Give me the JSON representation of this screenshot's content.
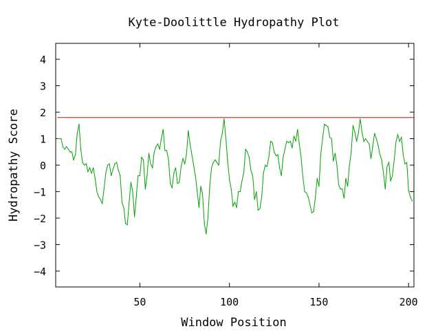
{
  "chart_data": {
    "type": "line",
    "title": "Kyte-Doolittle Hydropathy Plot",
    "xlabel": "Window Position",
    "ylabel": "Hydropathy Score",
    "xlim": [
      3,
      203
    ],
    "ylim": [
      -4.6,
      4.6
    ],
    "x_ticks": [
      50,
      100,
      150,
      200
    ],
    "y_ticks": [
      -4,
      -3,
      -2,
      -1,
      0,
      1,
      2,
      3,
      4
    ],
    "grid": false,
    "legend": "none",
    "threshold": {
      "value": 1.8,
      "color": "#e00000"
    },
    "series": [
      {
        "color": "#00a000",
        "x": [
          4,
          5,
          6,
          7,
          8,
          9,
          10,
          11,
          12,
          13,
          14,
          15,
          16,
          17,
          18,
          19,
          20,
          21,
          22,
          23,
          24,
          25,
          26,
          27,
          28,
          29,
          30,
          31,
          32,
          33,
          34,
          35,
          36,
          37,
          38,
          39,
          40,
          41,
          42,
          43,
          44,
          45,
          46,
          47,
          48,
          49,
          50,
          51,
          52,
          53,
          54,
          55,
          56,
          57,
          58,
          59,
          60,
          61,
          62,
          63,
          64,
          65,
          66,
          67,
          68,
          69,
          70,
          71,
          72,
          73,
          74,
          75,
          76,
          77,
          78,
          79,
          80,
          81,
          82,
          83,
          84,
          85,
          86,
          87,
          88,
          89,
          90,
          91,
          92,
          93,
          94,
          95,
          96,
          97,
          98,
          99,
          100,
          101,
          102,
          103,
          104,
          105,
          106,
          107,
          108,
          109,
          110,
          111,
          112,
          113,
          114,
          115,
          116,
          117,
          118,
          119,
          120,
          121,
          122,
          123,
          124,
          125,
          126,
          127,
          128,
          129,
          130,
          131,
          132,
          133,
          134,
          135,
          136,
          137,
          138,
          139,
          140,
          141,
          142,
          143,
          144,
          145,
          146,
          147,
          148,
          149,
          150,
          151,
          152,
          153,
          154,
          155,
          156,
          157,
          158,
          159,
          160,
          161,
          162,
          163,
          164,
          165,
          166,
          167,
          168,
          169,
          170,
          171,
          172,
          173,
          174,
          175,
          176,
          177,
          178,
          179,
          180,
          181,
          182,
          183,
          184,
          185,
          186,
          187,
          188,
          189,
          190,
          191,
          192,
          193,
          194,
          195,
          196,
          197,
          198,
          199,
          200,
          201,
          202
        ],
        "y": [
          1.0,
          1.0,
          1.0,
          0.7,
          0.6,
          0.7,
          0.6,
          0.5,
          0.5,
          0.2,
          0.4,
          1.2,
          1.55,
          0.6,
          0.1,
          0.0,
          0.05,
          -0.25,
          -0.1,
          -0.3,
          -0.1,
          -0.5,
          -1.0,
          -1.2,
          -1.3,
          -1.45,
          -0.9,
          -0.3,
          0.0,
          0.05,
          -0.4,
          -0.15,
          0.05,
          0.1,
          -0.2,
          -0.4,
          -1.4,
          -1.6,
          -2.2,
          -2.25,
          -1.4,
          -0.65,
          -1.0,
          -1.95,
          -1.2,
          -0.4,
          -0.4,
          0.3,
          0.2,
          -0.9,
          -0.4,
          0.45,
          0.05,
          -0.1,
          0.5,
          0.7,
          0.8,
          0.6,
          1.0,
          1.35,
          0.55,
          0.55,
          0.2,
          -0.7,
          -0.85,
          -0.3,
          -0.1,
          -0.7,
          -0.65,
          -0.05,
          0.25,
          0.05,
          0.4,
          1.3,
          0.8,
          0.4,
          0.0,
          -0.4,
          -1.0,
          -1.6,
          -0.8,
          -1.1,
          -2.2,
          -2.6,
          -2.0,
          -0.8,
          -0.1,
          0.1,
          0.2,
          0.1,
          0.0,
          0.9,
          1.2,
          1.75,
          1.0,
          0.15,
          -0.55,
          -0.9,
          -1.55,
          -1.4,
          -1.6,
          -1.0,
          -1.0,
          -0.6,
          -0.3,
          0.6,
          0.5,
          0.3,
          -0.2,
          -0.4,
          -1.3,
          -1.0,
          -1.7,
          -1.65,
          -1.2,
          -0.3,
          0.0,
          -0.05,
          0.3,
          0.9,
          0.85,
          0.5,
          0.35,
          0.4,
          -0.1,
          -0.4,
          0.3,
          0.6,
          0.9,
          0.85,
          0.9,
          0.65,
          1.1,
          0.9,
          1.35,
          0.8,
          0.3,
          -0.45,
          -1.0,
          -1.05,
          -1.2,
          -1.5,
          -1.8,
          -1.75,
          -1.2,
          -0.5,
          -0.8,
          0.4,
          1.0,
          1.55,
          1.5,
          1.45,
          1.05,
          1.0,
          0.15,
          0.45,
          0.0,
          -0.75,
          -0.9,
          -0.9,
          -1.25,
          -0.5,
          -0.8,
          0.0,
          0.5,
          1.5,
          1.25,
          0.9,
          1.2,
          1.75,
          1.25,
          0.9,
          1.0,
          0.9,
          0.8,
          0.25,
          0.7,
          1.2,
          1.0,
          0.75,
          0.4,
          0.2,
          -0.3,
          -0.9,
          -0.05,
          0.1,
          -0.6,
          -0.4,
          0.2,
          0.9,
          1.15,
          0.9,
          1.05,
          0.4,
          0.05,
          0.1,
          -0.95,
          -1.2,
          -1.35
        ]
      }
    ]
  }
}
